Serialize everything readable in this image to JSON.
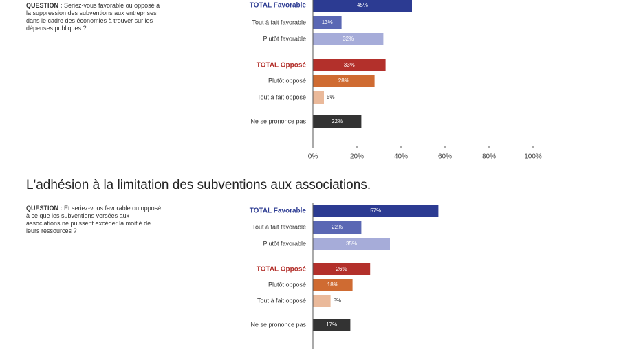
{
  "chart_data": [
    {
      "type": "bar",
      "orientation": "horizontal",
      "question_label": "QUESTION :",
      "question": "Seriez-vous favorable ou opposé à la suppression des subventions aux entreprises dans le cadre des économies à trouver sur les dépenses publiques ?",
      "categories": [
        "TOTAL Favorable",
        "Tout à fait favorable",
        "Plutôt favorable",
        "TOTAL Opposé",
        "Plutôt opposé",
        "Tout à fait opposé",
        "Ne se prononce pas"
      ],
      "values": [
        45,
        13,
        32,
        33,
        28,
        5,
        22
      ],
      "value_labels": [
        "45%",
        "13%",
        "32%",
        "33%",
        "28%",
        "5%",
        "22%"
      ],
      "colors": [
        "#2c3b92",
        "#5a67b4",
        "#a6acd9",
        "#b3302b",
        "#cf6b32",
        "#eab99a",
        "#333333"
      ],
      "xlim": [
        0,
        100
      ],
      "xticks": [
        {
          "value": 0,
          "label": "0%"
        },
        {
          "value": 20,
          "label": "20%"
        },
        {
          "value": 40,
          "label": "40%"
        },
        {
          "value": 60,
          "label": "60%"
        },
        {
          "value": 80,
          "label": "80%"
        },
        {
          "value": 100,
          "label": "100%"
        }
      ]
    },
    {
      "type": "bar",
      "orientation": "horizontal",
      "title": "L'adhésion à la limitation des subventions aux associations.",
      "question_label": "QUESTION :",
      "question": "Et seriez-vous favorable ou opposé à ce que les subventions versées aux associations ne puissent excéder la moitié de leurs ressources ?",
      "categories": [
        "TOTAL Favorable",
        "Tout à fait favorable",
        "Plutôt favorable",
        "TOTAL Opposé",
        "Plutôt opposé",
        "Tout à fait opposé",
        "Ne se prononce pas"
      ],
      "values": [
        57,
        22,
        35,
        26,
        18,
        8,
        17
      ],
      "value_labels": [
        "57%",
        "22%",
        "35%",
        "26%",
        "18%",
        "8%",
        "17%"
      ],
      "colors": [
        "#2c3b92",
        "#5a67b4",
        "#a6acd9",
        "#b3302b",
        "#cf6b32",
        "#eab99a",
        "#333333"
      ],
      "xlim": [
        0,
        100
      ]
    }
  ]
}
